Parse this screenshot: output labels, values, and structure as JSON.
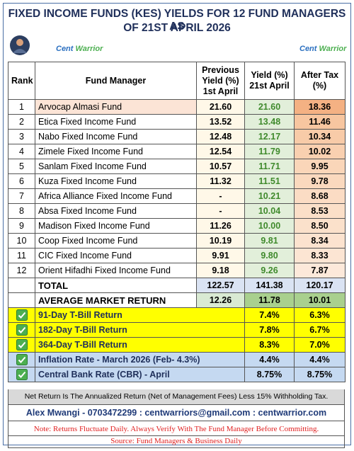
{
  "header": {
    "title_lines": [
      "FIXED INCOME FUNDS (KES) YIELDS  FOR 12 FUND MANAGERS AS",
      "OF 21ST APRIL 2026"
    ],
    "logos": [
      {
        "cent": "Cent",
        "warrior": "Warrior"
      },
      {
        "cent": "Cent",
        "warrior": "Warrior"
      }
    ]
  },
  "table": {
    "columns": [
      [
        "Rank"
      ],
      [
        "Fund Manager"
      ],
      [
        "Previous",
        "Yield (%)",
        "1st April"
      ],
      [
        "Yield (%)",
        "21st April"
      ],
      [
        "After Tax",
        "(%)"
      ]
    ],
    "rows": [
      [
        "1",
        "Arvocap Almasi Fund",
        "21.60",
        "21.60",
        "18.36"
      ],
      [
        "2",
        "Etica Fixed Income Fund",
        "13.52",
        "13.48",
        "11.46"
      ],
      [
        "3",
        "Nabo Fixed Income Fund",
        "12.48",
        "12.17",
        "10.34"
      ],
      [
        "4",
        "Zimele Fixed Income Fund",
        "12.54",
        "11.79",
        "10.02"
      ],
      [
        "5",
        "Sanlam Fixed Income Fund",
        "10.57",
        "11.71",
        "9.95"
      ],
      [
        "6",
        "Kuza Fixed Income Fund",
        "11.32",
        "11.51",
        "9.78"
      ],
      [
        "7",
        "Africa Alliance Fixed Income Fund",
        "-",
        "10.21",
        "8.68"
      ],
      [
        "8",
        "Absa Fixed Income Fund",
        "-",
        "10.04",
        "8.53"
      ],
      [
        "9",
        "Madison Fixed Income Fund",
        "11.26",
        "10.00",
        "8.50"
      ],
      [
        "10",
        "Coop Fixed Income Fund",
        "10.19",
        "9.81",
        "8.34"
      ],
      [
        "11",
        "CIC Fixed Income Fund",
        "9.91",
        "9.80",
        "8.33"
      ],
      [
        "12",
        "Orient Hifadhi Fixed Income Fund",
        "9.18",
        "9.26",
        "7.87"
      ]
    ],
    "total": {
      "label": "TOTAL",
      "values": [
        "122.57",
        "141.38",
        "120.17"
      ]
    },
    "average": {
      "label": "AVERAGE MARKET RETURN",
      "values": [
        "12.26",
        "11.78",
        "10.01"
      ]
    },
    "rates": [
      {
        "label": "91-Day T-Bill Return",
        "yield": "7.4%",
        "after_tax": "6.3%"
      },
      {
        "label": "182-Day  T-Bill Return",
        "yield": "7.8%",
        "after_tax": "6.7%"
      },
      {
        "label": "364-Day  T-Bill Return",
        "yield": "8.3%",
        "after_tax": "7.0%"
      },
      {
        "label": "Inflation Rate - March 2026 (Feb- 4.3%)",
        "yield": "4.4%",
        "after_tax": "4.4%"
      },
      {
        "label": "Central Bank Rate (CBR) - April",
        "yield": "8.75%",
        "after_tax": "8.75%"
      }
    ]
  },
  "footer": {
    "net_note": "Net Return Is The Annualized Return (Net of Management Fees) Less 15% Withholding Tax.",
    "contact": "Alex Mwangi - 0703472299 : centwarriors@gmail.com : centwarrior.com",
    "note": "Note: Returns Fluctuate Daily. Always Verify With The Fund Manager Before Committing.",
    "source": "Source: Fund Managers & Business Daily"
  }
}
